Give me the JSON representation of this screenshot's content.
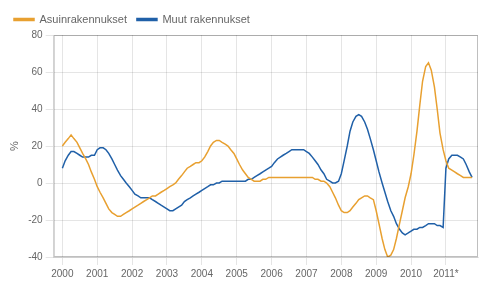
{
  "chart_data": {
    "type": "line",
    "ylabel": "%",
    "x": [
      2000.0,
      2000.08,
      2000.17,
      2000.25,
      2000.33,
      2000.42,
      2000.5,
      2000.58,
      2000.67,
      2000.75,
      2000.83,
      2000.92,
      2001.0,
      2001.08,
      2001.17,
      2001.25,
      2001.33,
      2001.42,
      2001.5,
      2001.58,
      2001.67,
      2001.75,
      2001.83,
      2001.92,
      2002.0,
      2002.08,
      2002.17,
      2002.25,
      2002.33,
      2002.42,
      2002.5,
      2002.58,
      2002.67,
      2002.75,
      2002.83,
      2002.92,
      2003.0,
      2003.08,
      2003.17,
      2003.25,
      2003.33,
      2003.42,
      2003.5,
      2003.58,
      2003.67,
      2003.75,
      2003.83,
      2003.92,
      2004.0,
      2004.08,
      2004.17,
      2004.25,
      2004.33,
      2004.42,
      2004.5,
      2004.58,
      2004.67,
      2004.75,
      2004.83,
      2004.92,
      2005.0,
      2005.08,
      2005.17,
      2005.25,
      2005.33,
      2005.42,
      2005.5,
      2005.58,
      2005.67,
      2005.75,
      2005.83,
      2005.92,
      2006.0,
      2006.08,
      2006.17,
      2006.25,
      2006.33,
      2006.42,
      2006.5,
      2006.58,
      2006.67,
      2006.75,
      2006.83,
      2006.92,
      2007.0,
      2007.08,
      2007.17,
      2007.25,
      2007.33,
      2007.42,
      2007.5,
      2007.58,
      2007.67,
      2007.75,
      2007.83,
      2007.92,
      2008.0,
      2008.08,
      2008.17,
      2008.25,
      2008.33,
      2008.42,
      2008.5,
      2008.58,
      2008.67,
      2008.75,
      2008.83,
      2008.92,
      2009.0,
      2009.08,
      2009.17,
      2009.25,
      2009.33,
      2009.42,
      2009.5,
      2009.58,
      2009.67,
      2009.75,
      2009.83,
      2009.92,
      2010.0,
      2010.08,
      2010.17,
      2010.25,
      2010.33,
      2010.42,
      2010.5,
      2010.58,
      2010.67,
      2010.75,
      2010.83,
      2010.92,
      2011.0,
      2011.08,
      2011.17,
      2011.25,
      2011.33,
      2011.42,
      2011.5,
      2011.58,
      2011.67,
      2011.75
    ],
    "series": [
      {
        "name": "Asuinrakennukset",
        "color": "#E8A030",
        "values": [
          20,
          22,
          24,
          26,
          24,
          22,
          19,
          16,
          13,
          10,
          6,
          2,
          -2,
          -5,
          -8,
          -11,
          -14,
          -16,
          -17,
          -18,
          -18,
          -17,
          -16,
          -15,
          -14,
          -13,
          -12,
          -11,
          -10,
          -9,
          -8,
          -7,
          -7,
          -6,
          -5,
          -4,
          -3,
          -2,
          -1,
          0,
          2,
          4,
          6,
          8,
          9,
          10,
          11,
          11,
          12,
          14,
          17,
          20,
          22,
          23,
          23,
          22,
          21,
          20,
          18,
          16,
          13,
          10,
          7,
          5,
          3,
          2,
          1,
          1,
          1,
          2,
          2,
          3,
          3,
          3,
          3,
          3,
          3,
          3,
          3,
          3,
          3,
          3,
          3,
          3,
          3,
          3,
          3,
          2,
          2,
          1,
          1,
          0,
          -2,
          -5,
          -8,
          -12,
          -15,
          -16,
          -16,
          -15,
          -13,
          -11,
          -9,
          -8,
          -7,
          -7,
          -8,
          -9,
          -15,
          -22,
          -30,
          -36,
          -40,
          -39,
          -36,
          -30,
          -22,
          -15,
          -8,
          -2,
          5,
          15,
          28,
          42,
          55,
          63,
          65,
          61,
          52,
          40,
          27,
          18,
          12,
          8,
          7,
          6,
          5,
          4,
          3,
          3,
          3,
          3
        ]
      },
      {
        "name": "Muut rakennukset",
        "color": "#2060A8",
        "values": [
          8,
          12,
          15,
          17,
          17,
          16,
          15,
          14,
          14,
          14,
          15,
          15,
          18,
          19,
          19,
          18,
          16,
          13,
          10,
          7,
          4,
          2,
          0,
          -2,
          -4,
          -6,
          -7,
          -8,
          -8,
          -8,
          -8,
          -9,
          -10,
          -11,
          -12,
          -13,
          -14,
          -15,
          -15,
          -14,
          -13,
          -12,
          -10,
          -9,
          -8,
          -7,
          -6,
          -5,
          -4,
          -3,
          -2,
          -1,
          -1,
          0,
          0,
          1,
          1,
          1,
          1,
          1,
          1,
          1,
          1,
          1,
          2,
          2,
          3,
          4,
          5,
          6,
          7,
          8,
          9,
          11,
          13,
          14,
          15,
          16,
          17,
          18,
          18,
          18,
          18,
          18,
          17,
          16,
          14,
          12,
          10,
          7,
          5,
          2,
          1,
          0,
          0,
          1,
          5,
          12,
          20,
          28,
          33,
          36,
          37,
          36,
          33,
          29,
          24,
          18,
          12,
          6,
          0,
          -5,
          -10,
          -15,
          -18,
          -22,
          -25,
          -27,
          -28,
          -27,
          -26,
          -25,
          -25,
          -24,
          -24,
          -23,
          -22,
          -22,
          -22,
          -23,
          -23,
          -24,
          8,
          13,
          15,
          15,
          15,
          14,
          13,
          10,
          6,
          3
        ]
      }
    ],
    "xlim": [
      1999.75,
      2011.92
    ],
    "xticks": [
      2000,
      2001,
      2002,
      2003,
      2004,
      2005,
      2006,
      2007,
      2008,
      2009,
      2010,
      {
        "value": 2011,
        "label": "2011*"
      }
    ],
    "ylim": [
      -40,
      80
    ],
    "yticks": [
      -40,
      -20,
      0,
      20,
      40,
      60,
      80
    ],
    "grid": true,
    "legend": "upper left"
  }
}
